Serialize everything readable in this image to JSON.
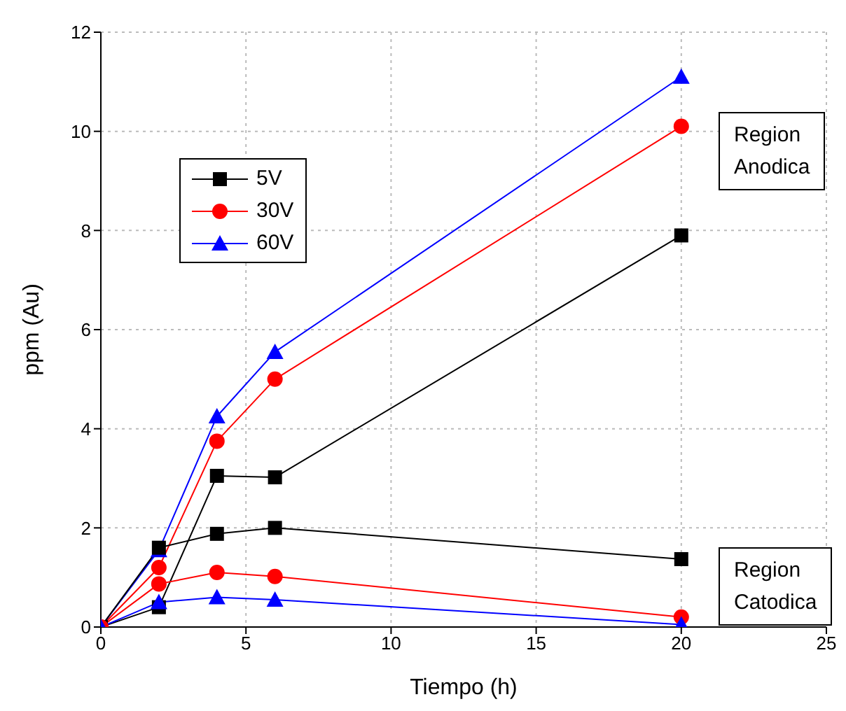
{
  "chart_data": {
    "type": "line",
    "xlabel": "Tiempo (h)",
    "ylabel": "ppm (Au)",
    "x": [
      0,
      2,
      4,
      6,
      20
    ],
    "xlim": [
      0,
      25
    ],
    "xticks": [
      0,
      5,
      10,
      15,
      20,
      25
    ],
    "ylim": [
      0,
      12
    ],
    "yticks": [
      0,
      2,
      4,
      6,
      8,
      10,
      12
    ],
    "grid": true,
    "legend": "top left",
    "series": [
      {
        "name": "5V",
        "color": "#000000",
        "marker": "square",
        "values": [
          0,
          0.4,
          3.05,
          3.02,
          7.9
        ]
      },
      {
        "name": "30V",
        "color": "#ff0000",
        "marker": "circle",
        "values": [
          0,
          1.2,
          3.75,
          5.0,
          10.1
        ]
      },
      {
        "name": "60V",
        "color": "#0000ff",
        "marker": "triangle",
        "values": [
          0,
          1.55,
          4.25,
          5.55,
          11.1
        ]
      },
      {
        "color": "#000000",
        "marker": "square",
        "values": [
          0,
          1.6,
          1.88,
          2.0,
          1.37
        ]
      },
      {
        "color": "#ff0000",
        "marker": "circle",
        "values": [
          0,
          0.87,
          1.1,
          1.02,
          0.2
        ]
      },
      {
        "color": "#0000ff",
        "marker": "triangle",
        "values": [
          0,
          0.5,
          0.6,
          0.55,
          0.05
        ]
      }
    ],
    "annotations": [
      "Region\nAnodica",
      "Region\nCatodica"
    ]
  }
}
